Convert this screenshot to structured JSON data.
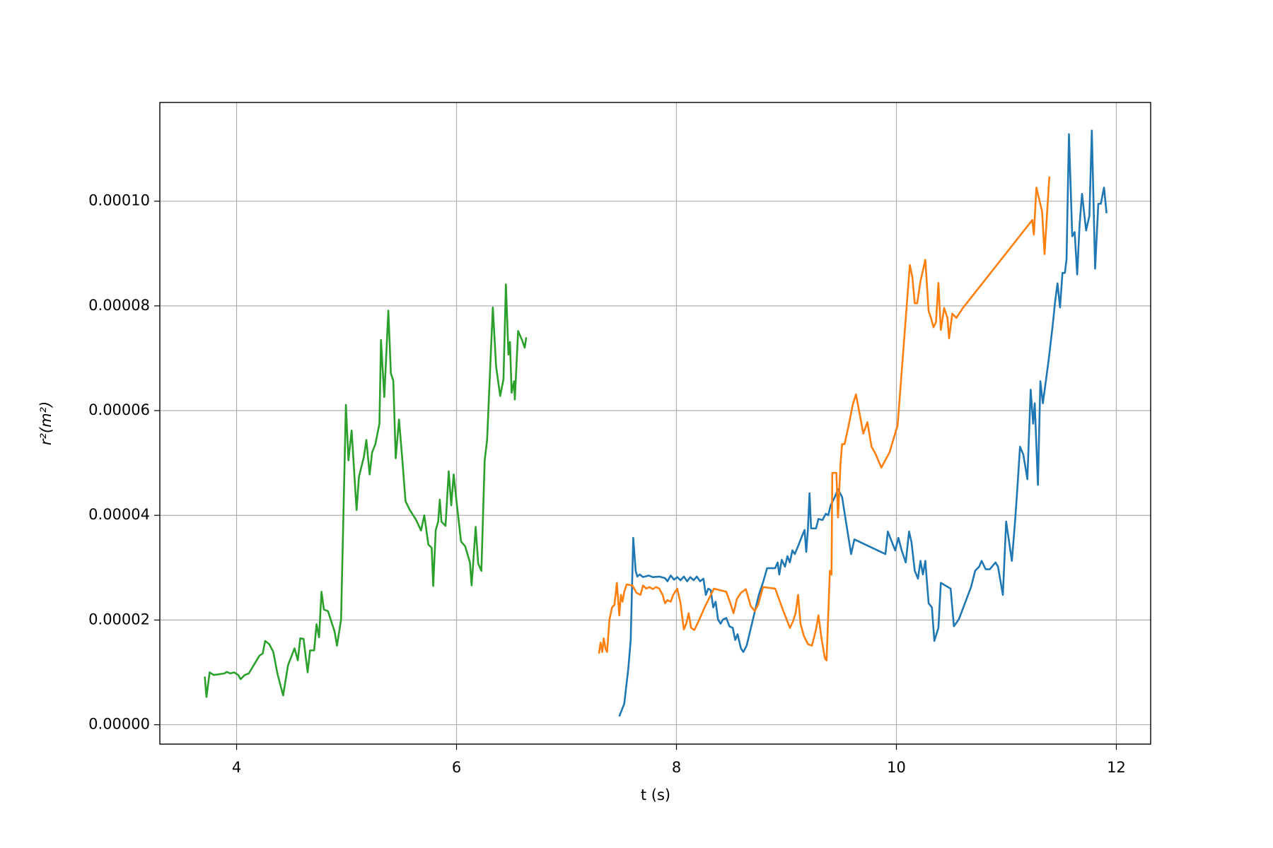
{
  "chart_data": {
    "type": "line",
    "xlabel": "t (s)",
    "ylabel": "r²(m²)",
    "xlim": [
      3.302,
      12.312
    ],
    "ylim": [
      -3.7e-06,
      0.00011885
    ],
    "xticks": [
      4,
      6,
      8,
      10,
      12
    ],
    "yticks": [
      {
        "value": 0,
        "label": "0.00000"
      },
      {
        "value": 2e-05,
        "label": "0.00002"
      },
      {
        "value": 4e-05,
        "label": "0.00004"
      },
      {
        "value": 6e-05,
        "label": "0.00006"
      },
      {
        "value": 8e-05,
        "label": "0.00008"
      },
      {
        "value": 0.0001,
        "label": "0.00010"
      }
    ],
    "grid": true,
    "series": [
      {
        "color": "#1f77b4",
        "x": [
          7.48,
          7.525,
          7.562,
          7.584,
          7.607,
          7.629,
          7.644,
          7.666,
          7.696,
          7.748,
          7.785,
          7.844,
          7.896,
          7.918,
          7.948,
          7.978,
          8.007,
          8.037,
          8.067,
          8.097,
          8.126,
          8.156,
          8.185,
          8.215,
          8.245,
          8.267,
          8.289,
          8.312,
          8.334,
          8.356,
          8.378,
          8.401,
          8.423,
          8.453,
          8.482,
          8.512,
          8.534,
          8.556,
          8.586,
          8.608,
          8.638,
          8.749,
          8.786,
          8.824,
          8.898,
          8.92,
          8.935,
          8.957,
          8.987,
          9.009,
          9.031,
          9.054,
          9.076,
          9.106,
          9.135,
          9.165,
          9.18,
          9.195,
          9.21,
          9.224,
          9.269,
          9.291,
          9.328,
          9.358,
          9.38,
          9.402,
          9.44,
          9.469,
          9.506,
          9.588,
          9.618,
          9.9,
          9.922,
          9.959,
          9.989,
          10.018,
          10.048,
          10.085,
          10.115,
          10.137,
          10.167,
          10.196,
          10.219,
          10.241,
          10.263,
          10.293,
          10.323,
          10.345,
          10.382,
          10.404,
          10.493,
          10.523,
          10.567,
          10.679,
          10.716,
          10.753,
          10.775,
          10.812,
          10.849,
          10.901,
          10.924,
          10.968,
          10.998,
          11.05,
          11.08,
          11.102,
          11.124,
          11.154,
          11.191,
          11.221,
          11.243,
          11.258,
          11.287,
          11.309,
          11.332,
          11.384,
          11.421,
          11.443,
          11.465,
          11.488,
          11.51,
          11.532,
          11.547,
          11.569,
          11.599,
          11.621,
          11.644,
          11.666,
          11.688,
          11.725,
          11.755,
          11.777,
          11.807,
          11.836,
          11.859,
          11.888,
          11.911
        ],
        "values": [
          1.6e-06,
          4e-06,
          1.07e-05,
          1.62e-05,
          3.57e-05,
          2.94e-05,
          2.83e-05,
          2.87e-05,
          2.82e-05,
          2.85e-05,
          2.82e-05,
          2.83e-05,
          2.8e-05,
          2.74e-05,
          2.85e-05,
          2.77e-05,
          2.82e-05,
          2.76e-05,
          2.83e-05,
          2.74e-05,
          2.82e-05,
          2.76e-05,
          2.83e-05,
          2.74e-05,
          2.79e-05,
          2.48e-05,
          2.6e-05,
          2.57e-05,
          2.24e-05,
          2.35e-05,
          2.01e-05,
          1.93e-05,
          2.01e-05,
          2.04e-05,
          1.88e-05,
          1.85e-05,
          1.62e-05,
          1.73e-05,
          1.46e-05,
          1.39e-05,
          1.51e-05,
          2.48e-05,
          2.71e-05,
          2.99e-05,
          2.99e-05,
          3.1e-05,
          2.87e-05,
          3.15e-05,
          3.02e-05,
          3.22e-05,
          3.1e-05,
          3.33e-05,
          3.26e-05,
          3.41e-05,
          3.57e-05,
          3.72e-05,
          3.3e-05,
          3.72e-05,
          4.42e-05,
          3.75e-05,
          3.75e-05,
          3.93e-05,
          3.91e-05,
          4.03e-05,
          4e-05,
          4.19e-05,
          4.35e-05,
          4.5e-05,
          4.35e-05,
          3.26e-05,
          3.54e-05,
          3.26e-05,
          3.69e-05,
          3.49e-05,
          3.33e-05,
          3.57e-05,
          3.33e-05,
          3.1e-05,
          3.69e-05,
          3.49e-05,
          2.94e-05,
          2.79e-05,
          3.13e-05,
          2.87e-05,
          3.13e-05,
          2.32e-05,
          2.24e-05,
          1.6e-05,
          1.85e-05,
          2.71e-05,
          2.6e-05,
          1.88e-05,
          2.01e-05,
          2.63e-05,
          2.94e-05,
          3.02e-05,
          3.13e-05,
          2.97e-05,
          2.97e-05,
          3.1e-05,
          3.02e-05,
          2.48e-05,
          3.88e-05,
          3.13e-05,
          3.91e-05,
          4.58e-05,
          5.31e-05,
          5.16e-05,
          4.69e-05,
          6.4e-05,
          5.75e-05,
          6.14e-05,
          4.58e-05,
          6.56e-05,
          6.14e-05,
          6.96e-05,
          7.62e-05,
          8.08e-05,
          8.43e-05,
          7.97e-05,
          8.63e-05,
          8.63e-05,
          8.89e-05,
          0.0001128,
          9.33e-05,
          9.41e-05,
          8.6e-05,
          9.56e-05,
          0.0001014,
          9.44e-05,
          9.72e-05,
          0.0001135,
          8.71e-05,
          9.95e-05,
          9.95e-05,
          0.0001026,
          9.77e-05
        ]
      },
      {
        "color": "#ff7f0e",
        "x": [
          7.295,
          7.31,
          7.325,
          7.339,
          7.354,
          7.369,
          7.391,
          7.414,
          7.436,
          7.458,
          7.48,
          7.495,
          7.51,
          7.525,
          7.547,
          7.599,
          7.636,
          7.673,
          7.696,
          7.725,
          7.755,
          7.785,
          7.814,
          7.844,
          7.874,
          7.896,
          7.918,
          7.948,
          7.97,
          8.007,
          8.037,
          8.067,
          8.089,
          8.111,
          8.133,
          8.163,
          8.208,
          8.267,
          8.341,
          8.453,
          8.49,
          8.519,
          8.549,
          8.586,
          8.631,
          8.675,
          8.712,
          8.742,
          8.787,
          8.898,
          8.972,
          9.032,
          9.061,
          9.083,
          9.106,
          9.128,
          9.158,
          9.195,
          9.232,
          9.269,
          9.291,
          9.321,
          9.351,
          9.365,
          9.395,
          9.41,
          9.417,
          9.454,
          9.469,
          9.492,
          9.506,
          9.529,
          9.566,
          9.603,
          9.632,
          9.655,
          9.699,
          9.736,
          9.774,
          9.811,
          9.863,
          9.937,
          10.011,
          10.122,
          10.145,
          10.167,
          10.189,
          10.219,
          10.263,
          10.293,
          10.315,
          10.337,
          10.36,
          10.382,
          10.404,
          10.434,
          10.464,
          10.479,
          10.508,
          10.545,
          10.605,
          11.236,
          11.25,
          11.273,
          11.325,
          11.347,
          11.391
        ],
        "values": [
          1.36e-05,
          1.57e-05,
          1.39e-05,
          1.65e-05,
          1.46e-05,
          1.39e-05,
          2.01e-05,
          2.24e-05,
          2.29e-05,
          2.71e-05,
          2.09e-05,
          2.48e-05,
          2.35e-05,
          2.54e-05,
          2.68e-05,
          2.66e-05,
          2.52e-05,
          2.48e-05,
          2.66e-05,
          2.6e-05,
          2.63e-05,
          2.59e-05,
          2.63e-05,
          2.6e-05,
          2.48e-05,
          2.32e-05,
          2.38e-05,
          2.35e-05,
          2.48e-05,
          2.6e-05,
          2.32e-05,
          1.82e-05,
          1.93e-05,
          2.13e-05,
          1.85e-05,
          1.81e-05,
          2.01e-05,
          2.29e-05,
          2.6e-05,
          2.54e-05,
          2.32e-05,
          2.13e-05,
          2.4e-05,
          2.52e-05,
          2.59e-05,
          2.27e-05,
          2.17e-05,
          2.29e-05,
          2.63e-05,
          2.6e-05,
          2.17e-05,
          1.85e-05,
          1.98e-05,
          2.13e-05,
          2.48e-05,
          1.93e-05,
          1.7e-05,
          1.54e-05,
          1.51e-05,
          1.82e-05,
          2.09e-05,
          1.62e-05,
          1.26e-05,
          1.23e-05,
          2.94e-05,
          2.87e-05,
          4.81e-05,
          4.81e-05,
          3.96e-05,
          5e-05,
          5.36e-05,
          5.36e-05,
          5.72e-05,
          6.11e-05,
          6.31e-05,
          6.06e-05,
          5.56e-05,
          5.78e-05,
          5.31e-05,
          5.17e-05,
          4.91e-05,
          5.2e-05,
          5.72e-05,
          8.78e-05,
          8.55e-05,
          8.05e-05,
          8.05e-05,
          8.47e-05,
          8.88e-05,
          7.9e-05,
          7.77e-05,
          7.59e-05,
          7.69e-05,
          8.44e-05,
          7.54e-05,
          7.96e-05,
          7.77e-05,
          7.38e-05,
          7.85e-05,
          7.77e-05,
          7.96e-05,
          9.64e-05,
          9.36e-05,
          0.0001026,
          9.8e-05,
          8.99e-05,
          0.0001047
        ]
      },
      {
        "color": "#2ca02c",
        "x": [
          3.711,
          3.726,
          3.755,
          3.792,
          3.889,
          3.911,
          3.941,
          3.978,
          4.015,
          4.037,
          4.074,
          4.111,
          4.148,
          4.208,
          4.237,
          4.26,
          4.297,
          4.334,
          4.371,
          4.423,
          4.468,
          4.505,
          4.527,
          4.557,
          4.579,
          4.609,
          4.646,
          4.668,
          4.705,
          4.727,
          4.75,
          4.772,
          4.794,
          4.831,
          4.891,
          4.913,
          4.95,
          4.994,
          5.017,
          5.046,
          5.091,
          5.113,
          5.158,
          5.18,
          5.21,
          5.232,
          5.262,
          5.299,
          5.313,
          5.343,
          5.38,
          5.403,
          5.425,
          5.447,
          5.477,
          5.506,
          5.536,
          5.573,
          5.633,
          5.677,
          5.707,
          5.744,
          5.774,
          5.788,
          5.811,
          5.833,
          5.848,
          5.863,
          5.9,
          5.929,
          5.952,
          5.974,
          6.004,
          6.041,
          6.078,
          6.122,
          6.137,
          6.152,
          6.174,
          6.197,
          6.226,
          6.256,
          6.278,
          6.33,
          6.36,
          6.397,
          6.427,
          6.449,
          6.472,
          6.486,
          6.501,
          6.523,
          6.53,
          6.56,
          6.597,
          6.62,
          6.634
        ],
        "values": [
          9.2e-06,
          5.3e-06,
          1e-05,
          9.5e-06,
          9.8e-06,
          1.01e-05,
          9.8e-06,
          1e-05,
          9.5e-06,
          8.7e-06,
          9.5e-06,
          9.8e-06,
          1.11e-05,
          1.32e-05,
          1.36e-05,
          1.6e-05,
          1.54e-05,
          1.39e-05,
          9.8e-06,
          5.6e-06,
          1.14e-05,
          1.34e-05,
          1.46e-05,
          1.23e-05,
          1.65e-05,
          1.64e-05,
          1e-05,
          1.42e-05,
          1.42e-05,
          1.92e-05,
          1.67e-05,
          2.54e-05,
          2.2e-05,
          2.17e-05,
          1.78e-05,
          1.51e-05,
          2.01e-05,
          6.11e-05,
          5.05e-05,
          5.62e-05,
          4.1e-05,
          4.74e-05,
          5.12e-05,
          5.44e-05,
          4.78e-05,
          5.2e-05,
          5.36e-05,
          5.75e-05,
          7.35e-05,
          6.26e-05,
          7.91e-05,
          6.71e-05,
          6.57e-05,
          5.09e-05,
          5.83e-05,
          5.09e-05,
          4.27e-05,
          4.11e-05,
          3.91e-05,
          3.71e-05,
          4e-05,
          3.44e-05,
          3.38e-05,
          2.65e-05,
          3.72e-05,
          3.88e-05,
          4.3e-05,
          3.88e-05,
          3.8e-05,
          4.84e-05,
          4.19e-05,
          4.78e-05,
          4.19e-05,
          3.5e-05,
          3.41e-05,
          3.1e-05,
          2.66e-05,
          3.1e-05,
          3.78e-05,
          3.08e-05,
          2.94e-05,
          5.05e-05,
          5.44e-05,
          7.97e-05,
          6.84e-05,
          6.28e-05,
          6.6e-05,
          8.41e-05,
          7.07e-05,
          7.31e-05,
          6.34e-05,
          6.56e-05,
          6.21e-05,
          7.52e-05,
          7.34e-05,
          7.2e-05,
          7.4e-05
        ]
      }
    ]
  }
}
